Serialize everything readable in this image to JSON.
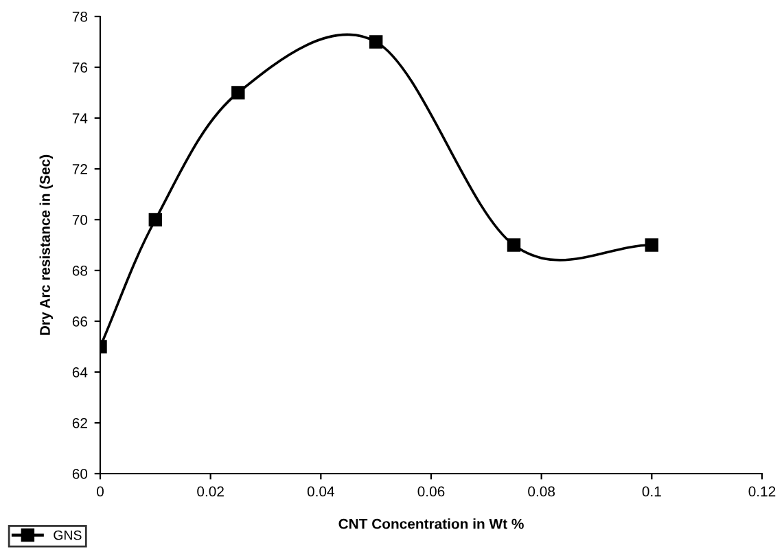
{
  "chart_data": {
    "type": "line",
    "xlabel": "CNT Concentration in Wt %",
    "ylabel": "Dry Arc resistance in (Sec)",
    "x": [
      0,
      0.01,
      0.025,
      0.05,
      0.075,
      0.1
    ],
    "series": [
      {
        "name": "GNS",
        "color": "#000000",
        "values": [
          65,
          70,
          75,
          77,
          69,
          69
        ]
      }
    ],
    "xlim": [
      0,
      0.12
    ],
    "xticks": [
      0,
      0.02,
      0.04,
      0.06,
      0.08,
      0.1,
      0.12
    ],
    "ylim": [
      60,
      78
    ],
    "yticks": [
      60,
      62,
      64,
      66,
      68,
      70,
      72,
      74,
      76,
      78
    ],
    "grid": false,
    "legend": "bottom left",
    "marker": "square",
    "line_style": "solid"
  }
}
